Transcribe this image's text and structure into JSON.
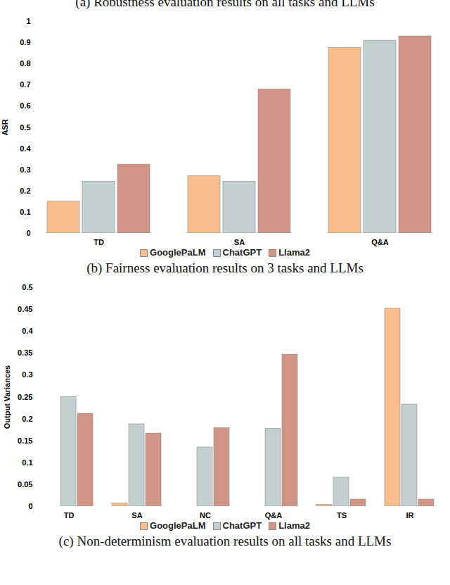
{
  "chart_data": [
    {
      "type": "bar",
      "title": "(a) Robustness evaluation results on all tasks and LLMs",
      "caption": "(b) Fairness evaluation results on 3 tasks and LLMs",
      "y_label": "ASR",
      "categories": [
        "TD",
        "SA",
        "Q&A"
      ],
      "series": [
        {
          "name": "GooglePaLM",
          "color": "#f7be8c",
          "values": [
            0.15,
            0.27,
            0.875
          ]
        },
        {
          "name": "ChatGPT",
          "color": "#c3d0d2",
          "values": [
            0.245,
            0.245,
            0.91
          ]
        },
        {
          "name": "Llama2",
          "color": "#d09585",
          "values": [
            0.325,
            0.68,
            0.93
          ]
        }
      ],
      "ylim": [
        0,
        1
      ],
      "yticks": [
        0,
        0.1,
        0.2,
        0.3,
        0.4,
        0.5,
        0.6,
        0.7,
        0.8,
        0.9,
        1
      ],
      "grid": false,
      "legend": "bottom"
    },
    {
      "type": "bar",
      "caption": "(c) Non-determinism evaluation results on all tasks and LLMs",
      "y_label": "Output Variances",
      "categories": [
        "TD",
        "SA",
        "NC",
        "Q&A",
        "TS",
        "IR"
      ],
      "series": [
        {
          "name": "GooglePaLM",
          "color": "#f7be8c",
          "values": [
            0,
            0.007,
            0,
            0,
            0.004,
            0.452
          ]
        },
        {
          "name": "ChatGPT",
          "color": "#c3d0d2",
          "values": [
            0.25,
            0.188,
            0.135,
            0.178,
            0.066,
            0.233
          ]
        },
        {
          "name": "Llama2",
          "color": "#d09585",
          "values": [
            0.212,
            0.167,
            0.179,
            0.347,
            0.016,
            0.016
          ]
        }
      ],
      "ylim": [
        0,
        0.5
      ],
      "yticks": [
        0,
        0.05,
        0.1,
        0.15,
        0.2,
        0.25,
        0.3,
        0.35,
        0.4,
        0.45,
        0.5
      ],
      "grid": false,
      "legend": "bottom"
    }
  ]
}
